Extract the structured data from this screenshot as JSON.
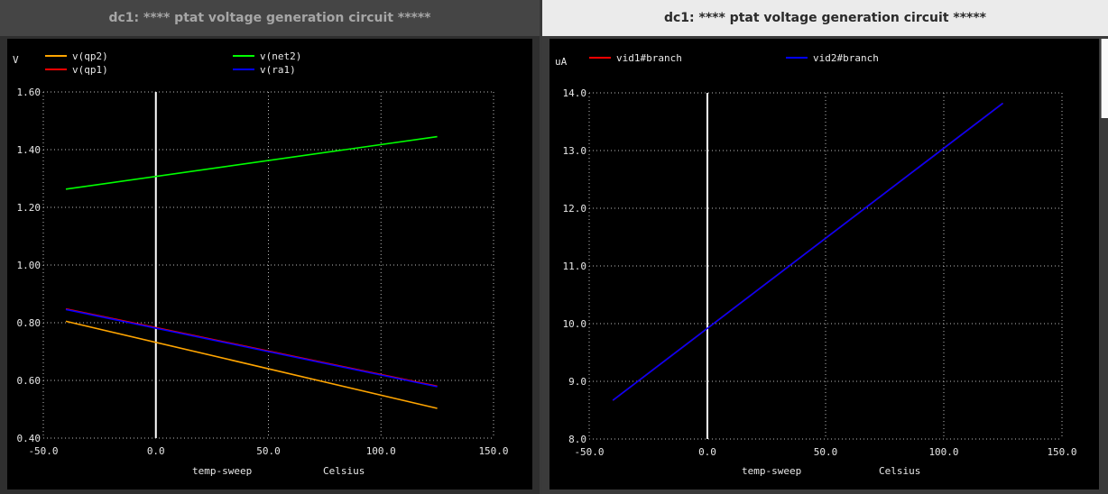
{
  "windows": [
    {
      "title": "dc1: **** ptat voltage generation circuit *****",
      "chart_data": {
        "type": "line",
        "ylabel": "V",
        "xlabel": "temp-sweep",
        "xunit": "Celsius",
        "xlim": [
          -50,
          150
        ],
        "ylim": [
          0.4,
          1.6
        ],
        "xticks": [
          -50,
          0,
          50,
          100,
          150
        ],
        "xtick_labels": [
          "-50.0",
          "0.0",
          "50.0",
          "100.0",
          "150.0"
        ],
        "yticks": [
          0.4,
          0.6,
          0.8,
          1.0,
          1.2,
          1.4,
          1.6
        ],
        "ytick_labels": [
          "0.40",
          "0.60",
          "0.80",
          "1.00",
          "1.20",
          "1.40",
          "1.60"
        ],
        "grid": true,
        "legend_position": "top",
        "series": [
          {
            "name": "v(qp2)",
            "color": "#ffa500",
            "x": [
              -40,
              125
            ],
            "y": [
              0.805,
              0.503
            ]
          },
          {
            "name": "v(net2)",
            "color": "#00ff00",
            "x": [
              -40,
              125
            ],
            "y": [
              1.263,
              1.445
            ]
          },
          {
            "name": "v(qp1)",
            "color": "#ff0000",
            "x": [
              -40,
              125
            ],
            "y": [
              0.848,
              0.58
            ]
          },
          {
            "name": "v(ra1)",
            "color": "#0000ff",
            "x": [
              -40,
              125
            ],
            "y": [
              0.846,
              0.578
            ]
          }
        ]
      }
    },
    {
      "title": "dc1: **** ptat voltage generation circuit *****",
      "chart_data": {
        "type": "line",
        "ylabel": "uA",
        "xlabel": "temp-sweep",
        "xunit": "Celsius",
        "xlim": [
          -50,
          150
        ],
        "ylim": [
          8.0,
          14.0
        ],
        "xticks": [
          -50,
          0,
          50,
          100,
          150
        ],
        "xtick_labels": [
          "-50.0",
          "0.0",
          "50.0",
          "100.0",
          "150.0"
        ],
        "yticks": [
          8,
          9,
          10,
          11,
          12,
          13,
          14
        ],
        "ytick_labels": [
          "8.0",
          "9.0",
          "10.0",
          "11.0",
          "12.0",
          "13.0",
          "14.0"
        ],
        "grid": true,
        "legend_position": "top",
        "series": [
          {
            "name": "vid1#branch",
            "color": "#ff0000",
            "x": [
              -40,
              125
            ],
            "y": [
              8.67,
              13.82
            ]
          },
          {
            "name": "vid2#branch",
            "color": "#0000ff",
            "x": [
              -40,
              125
            ],
            "y": [
              8.67,
              13.82
            ]
          }
        ]
      }
    }
  ]
}
